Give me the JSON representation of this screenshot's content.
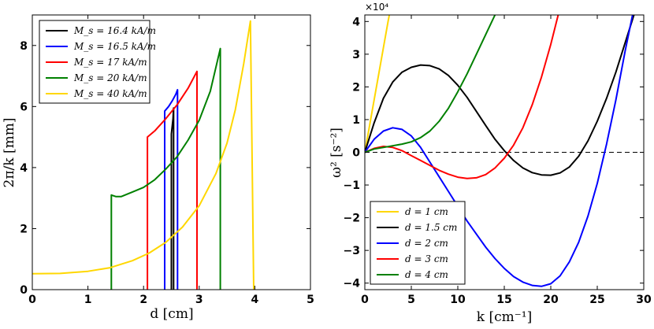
{
  "chart_data": [
    {
      "type": "line",
      "xlabel": "d [cm]",
      "ylabel": "2π/k [mm]",
      "xlim": [
        0,
        5
      ],
      "ylim": [
        0,
        9
      ],
      "xticks": [
        "0",
        "1",
        "2",
        "3",
        "4",
        "5"
      ],
      "yticks": [
        "0",
        "2",
        "4",
        "6",
        "8"
      ],
      "legend_position": "top-left",
      "series": [
        {
          "name": "M_s = 16.4 kA/m",
          "color": "#000000",
          "points": [
            [
              2.5,
              0
            ],
            [
              2.5,
              5.1
            ],
            [
              2.53,
              5.6
            ],
            [
              2.54,
              5.95
            ],
            [
              2.54,
              0
            ]
          ]
        },
        {
          "name": "M_s = 16.5 kA/m",
          "color": "#0000ff",
          "points": [
            [
              2.38,
              0
            ],
            [
              2.38,
              5.85
            ],
            [
              2.45,
              6.0
            ],
            [
              2.52,
              6.2
            ],
            [
              2.58,
              6.4
            ],
            [
              2.61,
              6.55
            ],
            [
              2.61,
              0
            ]
          ]
        },
        {
          "name": "M_s = 17 kA/m",
          "color": "#ff0000",
          "points": [
            [
              2.07,
              0
            ],
            [
              2.07,
              5.0
            ],
            [
              2.2,
              5.2
            ],
            [
              2.4,
              5.6
            ],
            [
              2.6,
              6.05
            ],
            [
              2.8,
              6.6
            ],
            [
              2.96,
              7.15
            ],
            [
              2.96,
              0
            ]
          ]
        },
        {
          "name": "M_s = 20 kA/m",
          "color": "#008000",
          "points": [
            [
              1.42,
              0
            ],
            [
              1.42,
              3.1
            ],
            [
              1.5,
              3.05
            ],
            [
              1.6,
              3.05
            ],
            [
              1.8,
              3.2
            ],
            [
              2.0,
              3.35
            ],
            [
              2.2,
              3.6
            ],
            [
              2.4,
              3.95
            ],
            [
              2.6,
              4.35
            ],
            [
              2.8,
              4.9
            ],
            [
              3.0,
              5.55
            ],
            [
              3.2,
              6.5
            ],
            [
              3.38,
              7.9
            ],
            [
              3.38,
              0
            ]
          ]
        },
        {
          "name": "M_s = 40 kA/m",
          "color": "#ffd700",
          "points": [
            [
              0,
              0.52
            ],
            [
              0.5,
              0.53
            ],
            [
              1.0,
              0.6
            ],
            [
              1.4,
              0.72
            ],
            [
              1.8,
              0.95
            ],
            [
              2.1,
              1.2
            ],
            [
              2.4,
              1.55
            ],
            [
              2.7,
              2.05
            ],
            [
              3.0,
              2.75
            ],
            [
              3.3,
              3.8
            ],
            [
              3.5,
              4.8
            ],
            [
              3.65,
              5.9
            ],
            [
              3.8,
              7.4
            ],
            [
              3.92,
              8.8
            ],
            [
              3.98,
              0
            ]
          ]
        }
      ]
    },
    {
      "type": "line",
      "xlabel": "k [cm⁻¹]",
      "ylabel": "ω² [s⁻²]",
      "xlim": [
        0,
        30
      ],
      "ylim": [
        -4.2,
        4.2
      ],
      "scale_note": "×10⁴",
      "xticks": [
        "0",
        "5",
        "10",
        "15",
        "20",
        "25",
        "30"
      ],
      "yticks": [
        "−4",
        "−3",
        "−2",
        "−1",
        "0",
        "1",
        "2",
        "3",
        "4"
      ],
      "legend_position": "bottom-left",
      "zero_line": "dashed",
      "series": [
        {
          "name": "d = 1 cm",
          "color": "#ffd700",
          "points": [
            [
              0,
              0
            ],
            [
              0.5,
              0.8
            ],
            [
              1.0,
              1.6
            ],
            [
              1.5,
              2.4
            ],
            [
              2.0,
              3.2
            ],
            [
              2.5,
              4.0
            ],
            [
              2.7,
              4.3
            ]
          ]
        },
        {
          "name": "d = 1.5 cm",
          "color": "#000000",
          "points": [
            [
              0,
              0
            ],
            [
              1,
              0.9
            ],
            [
              2,
              1.65
            ],
            [
              3,
              2.15
            ],
            [
              4,
              2.45
            ],
            [
              5,
              2.6
            ],
            [
              6,
              2.67
            ],
            [
              7,
              2.65
            ],
            [
              8,
              2.55
            ],
            [
              9,
              2.35
            ],
            [
              10,
              2.05
            ],
            [
              11,
              1.68
            ],
            [
              12,
              1.25
            ],
            [
              13,
              0.82
            ],
            [
              14,
              0.4
            ],
            [
              15,
              0.05
            ],
            [
              16,
              -0.25
            ],
            [
              17,
              -0.48
            ],
            [
              18,
              -0.62
            ],
            [
              19,
              -0.69
            ],
            [
              20,
              -0.7
            ],
            [
              21,
              -0.63
            ],
            [
              22,
              -0.45
            ],
            [
              23,
              -0.12
            ],
            [
              24,
              0.35
            ],
            [
              25,
              0.95
            ],
            [
              26,
              1.65
            ],
            [
              27,
              2.45
            ],
            [
              28,
              3.35
            ],
            [
              29,
              4.25
            ]
          ]
        },
        {
          "name": "d = 2 cm",
          "color": "#0000ff",
          "points": [
            [
              0,
              0
            ],
            [
              1,
              0.4
            ],
            [
              2,
              0.65
            ],
            [
              3,
              0.75
            ],
            [
              4,
              0.7
            ],
            [
              5,
              0.5
            ],
            [
              6,
              0.15
            ],
            [
              7,
              -0.3
            ],
            [
              8,
              -0.75
            ],
            [
              9,
              -1.2
            ],
            [
              10,
              -1.65
            ],
            [
              11,
              -2.1
            ],
            [
              12,
              -2.5
            ],
            [
              13,
              -2.9
            ],
            [
              14,
              -3.25
            ],
            [
              15,
              -3.55
            ],
            [
              16,
              -3.8
            ],
            [
              17,
              -3.97
            ],
            [
              18,
              -4.07
            ],
            [
              19,
              -4.1
            ],
            [
              20,
              -4.02
            ],
            [
              21,
              -3.78
            ],
            [
              22,
              -3.35
            ],
            [
              23,
              -2.75
            ],
            [
              24,
              -1.95
            ],
            [
              25,
              -0.95
            ],
            [
              26,
              0.25
            ],
            [
              27,
              1.6
            ],
            [
              28,
              3.1
            ],
            [
              28.8,
              4.2
            ]
          ]
        },
        {
          "name": "d = 3 cm",
          "color": "#ff0000",
          "points": [
            [
              0,
              0
            ],
            [
              1,
              0.12
            ],
            [
              2,
              0.18
            ],
            [
              3,
              0.15
            ],
            [
              4,
              0.05
            ],
            [
              5,
              -0.1
            ],
            [
              6,
              -0.25
            ],
            [
              7,
              -0.4
            ],
            [
              8,
              -0.55
            ],
            [
              9,
              -0.67
            ],
            [
              10,
              -0.76
            ],
            [
              11,
              -0.8
            ],
            [
              12,
              -0.78
            ],
            [
              13,
              -0.68
            ],
            [
              14,
              -0.48
            ],
            [
              15,
              -0.18
            ],
            [
              16,
              0.22
            ],
            [
              17,
              0.75
            ],
            [
              18,
              1.45
            ],
            [
              19,
              2.3
            ],
            [
              20,
              3.3
            ],
            [
              20.8,
              4.2
            ]
          ]
        },
        {
          "name": "d = 4 cm",
          "color": "#008000",
          "points": [
            [
              0,
              0
            ],
            [
              1,
              0.1
            ],
            [
              2,
              0.15
            ],
            [
              3,
              0.2
            ],
            [
              4,
              0.25
            ],
            [
              5,
              0.32
            ],
            [
              6,
              0.45
            ],
            [
              7,
              0.65
            ],
            [
              8,
              0.95
            ],
            [
              9,
              1.35
            ],
            [
              10,
              1.85
            ],
            [
              11,
              2.4
            ],
            [
              12,
              3.0
            ],
            [
              13,
              3.6
            ],
            [
              14,
              4.2
            ]
          ]
        }
      ]
    }
  ]
}
